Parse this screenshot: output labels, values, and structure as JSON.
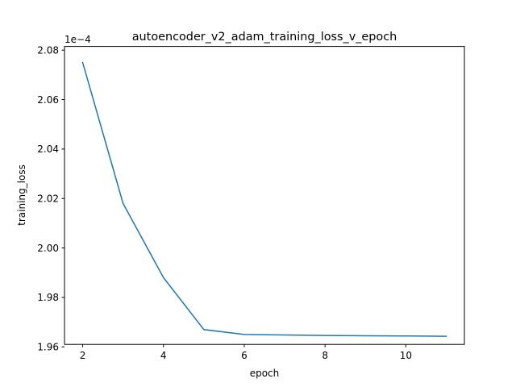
{
  "chart_data": {
    "type": "line",
    "title": "autoencoder_v2_adam_training_loss_v_epoch",
    "xlabel": "epoch",
    "ylabel": "training_loss",
    "offset_text": "1e−4",
    "x": [
      2,
      3,
      4,
      5,
      6,
      7,
      8,
      9,
      10,
      11
    ],
    "series": [
      {
        "values": [
          0.0002075,
          0.0002018,
          0.0001988,
          0.0001967,
          0.0001965,
          0.00019648,
          0.00019646,
          0.00019645,
          0.00019644,
          0.00019643
        ],
        "color": "#1f77b4"
      }
    ],
    "xlim": [
      1.55,
      11.45
    ],
    "ylim": [
      0.0001961,
      0.00020815
    ],
    "xticks": [
      2,
      4,
      6,
      8,
      10
    ],
    "xtick_labels": [
      "2",
      "4",
      "6",
      "8",
      "10"
    ],
    "yticks": [
      0.000196,
      0.000198,
      0.0002,
      0.000202,
      0.000204,
      0.000206,
      0.000208
    ],
    "ytick_labels": [
      "1.96",
      "1.98",
      "2.00",
      "2.02",
      "2.04",
      "2.06",
      "2.08"
    ],
    "grid": false,
    "legend": "none"
  }
}
